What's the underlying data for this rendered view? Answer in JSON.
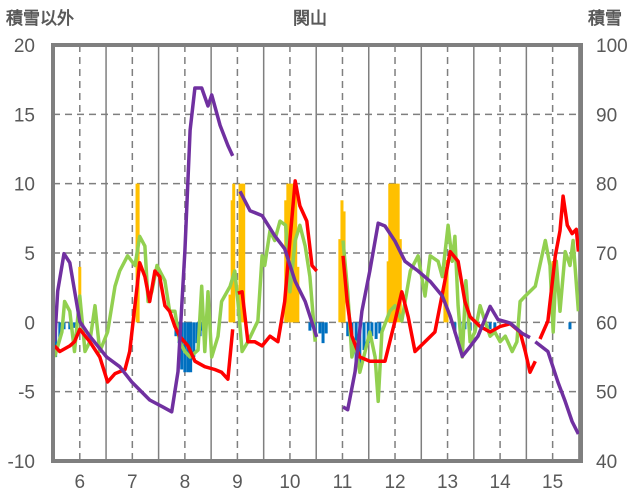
{
  "chart_data": {
    "type": "line",
    "title": "関山",
    "ylabel": "積雪以外",
    "y2label": "積雪",
    "xlim": [
      5.49,
      15.54
    ],
    "ylim": [
      -10,
      20
    ],
    "y2lim": [
      40,
      100
    ],
    "yticks": [
      "20",
      "15",
      "10",
      "5",
      "0",
      "-5",
      "-10"
    ],
    "y2ticks": [
      "100",
      "90",
      "80",
      "70",
      "60",
      "50",
      "40"
    ],
    "xticks": [
      "6",
      "7",
      "8",
      "9",
      "10",
      "11",
      "12",
      "13",
      "14",
      "15"
    ],
    "grid": true,
    "colors": {
      "red": "#ff0000",
      "green": "#92d050",
      "purple": "#7030a0",
      "orange": "#ffc000",
      "blue": "#0070c0"
    },
    "series": [
      {
        "name": "積雪",
        "axis": "right",
        "color": "#7030a0",
        "points": [
          [
            5.52,
            57.2
          ],
          [
            5.58,
            64.5
          ],
          [
            5.7,
            69.9
          ],
          [
            5.81,
            68.6
          ],
          [
            6.0,
            60.1
          ],
          [
            6.19,
            58
          ],
          [
            6.51,
            55
          ],
          [
            6.76,
            53.6
          ],
          [
            6.99,
            51.4
          ],
          [
            7.33,
            48.8
          ],
          [
            7.58,
            47.8
          ],
          [
            7.75,
            47.1
          ],
          [
            7.87,
            52.9
          ],
          [
            8.0,
            70.3
          ],
          [
            8.1,
            87.7
          ],
          [
            8.19,
            93.8
          ],
          [
            8.32,
            93.8
          ],
          [
            8.44,
            91.2
          ],
          [
            8.51,
            92.8
          ],
          [
            8.67,
            88.4
          ],
          [
            8.82,
            85.5
          ],
          [
            8.91,
            84
          ],
          null,
          [
            9.05,
            78.9
          ],
          [
            9.24,
            76.1
          ],
          [
            9.47,
            75.4
          ],
          [
            9.71,
            72.5
          ],
          [
            9.9,
            70.6
          ],
          [
            10.1,
            65.9
          ],
          [
            10.29,
            63
          ],
          [
            10.51,
            57.9
          ],
          null,
          [
            11.01,
            47.8
          ],
          [
            11.1,
            47.4
          ],
          [
            11.24,
            52.9
          ],
          [
            11.37,
            61.6
          ],
          [
            11.52,
            67.4
          ],
          [
            11.68,
            74.3
          ],
          [
            11.81,
            73.9
          ],
          [
            12.0,
            71.7
          ],
          [
            12.19,
            68.8
          ],
          [
            12.44,
            67.4
          ],
          [
            12.67,
            65.9
          ],
          [
            12.9,
            63.8
          ],
          [
            13.05,
            60.9
          ],
          [
            13.28,
            55.1
          ],
          [
            13.43,
            56.5
          ],
          [
            13.58,
            58
          ],
          [
            13.81,
            62.3
          ],
          [
            13.96,
            60.4
          ],
          [
            14.19,
            59.9
          ],
          [
            14.42,
            58.4
          ],
          [
            14.57,
            57.8
          ],
          null,
          [
            14.67,
            57.2
          ],
          [
            14.91,
            55.8
          ],
          [
            15.1,
            51.4
          ],
          [
            15.24,
            48.6
          ],
          [
            15.37,
            45.7
          ],
          [
            15.49,
            43.9
          ]
        ]
      },
      {
        "name": "red",
        "axis": "left",
        "color": "#ff0000",
        "points": [
          [
            5.52,
            -1.7
          ],
          [
            5.62,
            -2.1
          ],
          [
            5.81,
            -1.7
          ],
          [
            5.9,
            -1.4
          ],
          [
            6.0,
            -0.5
          ],
          [
            6.19,
            -1.4
          ],
          [
            6.38,
            -2.5
          ],
          [
            6.53,
            -4.3
          ],
          [
            6.67,
            -3.7
          ],
          [
            6.86,
            -3.4
          ],
          [
            6.95,
            -2.1
          ],
          [
            7.09,
            2.6
          ],
          [
            7.14,
            4.3
          ],
          [
            7.24,
            3.3
          ],
          [
            7.33,
            1.5
          ],
          [
            7.43,
            3.7
          ],
          [
            7.52,
            3.3
          ],
          [
            7.62,
            1.2
          ],
          [
            7.71,
            0.8
          ],
          [
            7.81,
            -0.3
          ],
          [
            7.9,
            -1.0
          ],
          [
            8.06,
            -1.7
          ],
          [
            8.19,
            -2.8
          ],
          [
            8.38,
            -3.2
          ],
          [
            8.57,
            -3.4
          ],
          [
            8.7,
            -3.6
          ],
          [
            8.82,
            -4.1
          ],
          [
            8.91,
            -0.5
          ],
          null,
          [
            9.01,
            2.1
          ],
          [
            9.09,
            2.2
          ],
          [
            9.2,
            -1.4
          ],
          [
            9.33,
            -1.4
          ],
          [
            9.47,
            -1.7
          ],
          [
            9.62,
            -1.0
          ],
          [
            9.77,
            -1.4
          ],
          [
            9.9,
            1.5
          ],
          [
            10.0,
            5.9
          ],
          [
            10.1,
            10.2
          ],
          [
            10.19,
            8.4
          ],
          [
            10.32,
            7.3
          ],
          [
            10.42,
            4.1
          ],
          [
            10.51,
            3.7
          ],
          null,
          [
            11.01,
            4.8
          ],
          [
            11.09,
            1.5
          ],
          [
            11.18,
            -1.0
          ],
          [
            11.33,
            -2.5
          ],
          [
            11.52,
            -2.8
          ],
          [
            11.71,
            -2.8
          ],
          [
            11.81,
            -2.8
          ],
          [
            11.9,
            -1.4
          ],
          [
            12.0,
            0.1
          ],
          [
            12.13,
            2.2
          ],
          [
            12.25,
            0.4
          ],
          [
            12.38,
            -2.1
          ],
          [
            12.57,
            -1.4
          ],
          [
            12.76,
            -0.7
          ],
          [
            12.95,
            3.0
          ],
          [
            13.05,
            5.1
          ],
          [
            13.2,
            4.4
          ],
          [
            13.33,
            1.5
          ],
          [
            13.43,
            0.4
          ],
          [
            13.62,
            -0.3
          ],
          [
            13.81,
            -0.7
          ],
          [
            14.0,
            -0.3
          ],
          [
            14.19,
            -0.1
          ],
          [
            14.38,
            -0.7
          ],
          [
            14.48,
            -2.1
          ],
          [
            14.57,
            -3.6
          ],
          [
            14.67,
            -2.8
          ],
          null,
          [
            14.76,
            -1.2
          ],
          [
            14.91,
            0.1
          ],
          [
            15.05,
            4.8
          ],
          [
            15.14,
            6.6
          ],
          [
            15.2,
            9.1
          ],
          [
            15.28,
            7.0
          ],
          [
            15.37,
            6.4
          ],
          [
            15.45,
            6.7
          ],
          [
            15.49,
            5.1
          ]
        ]
      },
      {
        "name": "green",
        "axis": "left",
        "color": "#92d050",
        "points": [
          [
            5.52,
            -2.5
          ],
          [
            5.66,
            -0.7
          ],
          [
            5.71,
            1.5
          ],
          [
            5.81,
            0.8
          ],
          [
            5.9,
            -2.1
          ],
          [
            6.0,
            1.9
          ],
          [
            6.1,
            -2.1
          ],
          [
            6.19,
            -1.4
          ],
          [
            6.29,
            1.2
          ],
          [
            6.38,
            -2.1
          ],
          [
            6.53,
            -0.7
          ],
          [
            6.67,
            2.6
          ],
          [
            6.76,
            3.7
          ],
          [
            6.91,
            4.8
          ],
          [
            7.05,
            4.1
          ],
          [
            7.14,
            6.2
          ],
          [
            7.24,
            5.5
          ],
          [
            7.3,
            1.5
          ],
          [
            7.37,
            2.2
          ],
          [
            7.47,
            4.1
          ],
          [
            7.62,
            3.0
          ],
          [
            7.71,
            0.8
          ],
          [
            7.81,
            0.8
          ],
          [
            7.9,
            -1.4
          ],
          [
            8.0,
            -2.1
          ],
          [
            8.1,
            -2.5
          ],
          [
            8.25,
            -2.0
          ],
          [
            8.32,
            2.6
          ],
          [
            8.38,
            -2.1
          ],
          [
            8.44,
            2.2
          ],
          [
            8.51,
            -2.5
          ],
          [
            8.63,
            -1.0
          ],
          [
            8.7,
            1.5
          ],
          [
            8.86,
            2.6
          ],
          [
            8.95,
            3.7
          ],
          [
            9.01,
            1.5
          ],
          [
            9.09,
            -2.1
          ],
          [
            9.2,
            -1.4
          ],
          [
            9.39,
            0.1
          ],
          [
            9.47,
            4.8
          ],
          [
            9.52,
            4.1
          ],
          [
            9.62,
            6.6
          ],
          [
            9.71,
            5.9
          ],
          [
            9.81,
            7.3
          ],
          [
            9.92,
            7.0
          ],
          [
            10.0,
            2.2
          ],
          [
            10.1,
            5.9
          ],
          [
            10.19,
            7.0
          ],
          [
            10.29,
            5.5
          ],
          [
            10.38,
            3.3
          ],
          [
            10.48,
            -1.4
          ],
          null,
          [
            11.01,
            5.9
          ],
          [
            11.1,
            2.2
          ],
          [
            11.18,
            -2.5
          ],
          [
            11.24,
            -1.4
          ],
          [
            11.33,
            -3.6
          ],
          [
            11.43,
            -2.1
          ],
          [
            11.52,
            -0.7
          ],
          [
            11.62,
            -2.5
          ],
          [
            11.68,
            -5.7
          ],
          [
            11.75,
            -0.7
          ],
          [
            11.9,
            0.8
          ],
          [
            12.0,
            1.2
          ],
          [
            12.13,
            0.1
          ],
          [
            12.29,
            3.7
          ],
          [
            12.44,
            4.8
          ],
          [
            12.57,
            1.9
          ],
          [
            12.67,
            4.8
          ],
          [
            12.82,
            4.4
          ],
          [
            12.9,
            3.3
          ],
          [
            13.01,
            7.0
          ],
          [
            13.09,
            4.4
          ],
          [
            13.14,
            6.2
          ],
          [
            13.2,
            1.2
          ],
          [
            13.28,
            -2.5
          ],
          [
            13.35,
            3.0
          ],
          [
            13.43,
            -1.4
          ],
          [
            13.52,
            -0.7
          ],
          [
            13.62,
            1.2
          ],
          [
            13.71,
            0.1
          ],
          [
            13.81,
            -1.0
          ],
          [
            13.9,
            -0.7
          ],
          [
            14.0,
            -1.4
          ],
          [
            14.1,
            -1.0
          ],
          [
            14.23,
            -2.1
          ],
          [
            14.32,
            -1.4
          ],
          [
            14.38,
            1.5
          ],
          [
            14.48,
            1.9
          ],
          [
            14.67,
            2.6
          ],
          [
            14.86,
            5.9
          ],
          [
            14.95,
            4.1
          ],
          [
            15.01,
            -0.7
          ],
          [
            15.07,
            4.4
          ],
          [
            15.14,
            0.8
          ],
          [
            15.24,
            5.1
          ],
          [
            15.33,
            4.1
          ],
          [
            15.39,
            5.9
          ],
          [
            15.49,
            0.8
          ]
        ]
      }
    ],
    "bars_positive": {
      "name": "orange",
      "color": "#ffc000",
      "values": [
        [
          6.0,
          4
        ],
        [
          7.09,
          10
        ],
        [
          7.11,
          10
        ],
        [
          8.86,
          2
        ],
        [
          8.9,
          8.8
        ],
        [
          8.93,
          10
        ],
        [
          9.05,
          10
        ],
        [
          9.09,
          10
        ],
        [
          9.12,
          10
        ],
        [
          9.92,
          8.8
        ],
        [
          9.96,
          10
        ],
        [
          10.0,
          10
        ],
        [
          10.04,
          10
        ],
        [
          10.08,
          10
        ],
        [
          10.11,
          10
        ],
        [
          10.15,
          4
        ],
        [
          10.95,
          6
        ],
        [
          10.99,
          8.8
        ],
        [
          11.03,
          8
        ],
        [
          11.87,
          4.4
        ],
        [
          11.9,
          10
        ],
        [
          11.94,
          10
        ],
        [
          11.98,
          10
        ],
        [
          12.02,
          10
        ],
        [
          12.06,
          10
        ],
        [
          12.1,
          6
        ],
        [
          12.95,
          4
        ],
        [
          12.99,
          4.5
        ],
        [
          15.01,
          4.4
        ]
      ]
    },
    "bars_negative": {
      "name": "blue",
      "color": "#0070c0",
      "values": [
        [
          5.5,
          -4
        ],
        [
          5.54,
          -2.5
        ],
        [
          5.62,
          -1.2
        ],
        [
          5.7,
          -0.5
        ],
        [
          5.81,
          -0.5
        ],
        [
          5.9,
          -0.4
        ],
        [
          7.83,
          -1
        ],
        [
          7.89,
          -1.5
        ],
        [
          7.94,
          -3.4
        ],
        [
          8.0,
          -3.6
        ],
        [
          8.06,
          -3.6
        ],
        [
          8.11,
          -3.6
        ],
        [
          8.17,
          -2.5
        ],
        [
          8.23,
          -1.5
        ],
        [
          8.29,
          -1
        ],
        [
          8.34,
          -0.6
        ],
        [
          8.48,
          -0.5
        ],
        [
          10.38,
          -0.6
        ],
        [
          10.48,
          -1
        ],
        [
          10.57,
          -0.8
        ],
        [
          10.63,
          -1.5
        ],
        [
          10.69,
          -0.8
        ],
        [
          11.1,
          -1
        ],
        [
          11.18,
          -2.5
        ],
        [
          11.26,
          -3.2
        ],
        [
          11.33,
          -3
        ],
        [
          11.41,
          -2
        ],
        [
          11.49,
          -1.5
        ],
        [
          11.56,
          -1
        ],
        [
          11.64,
          -1.2
        ],
        [
          11.71,
          -0.8
        ],
        [
          13.14,
          -0.8
        ],
        [
          13.24,
          -1.2
        ],
        [
          13.33,
          -0.5
        ],
        [
          13.43,
          -0.6
        ],
        [
          13.81,
          -0.5
        ],
        [
          13.9,
          -0.7
        ],
        [
          15.33,
          -0.5
        ]
      ]
    }
  }
}
